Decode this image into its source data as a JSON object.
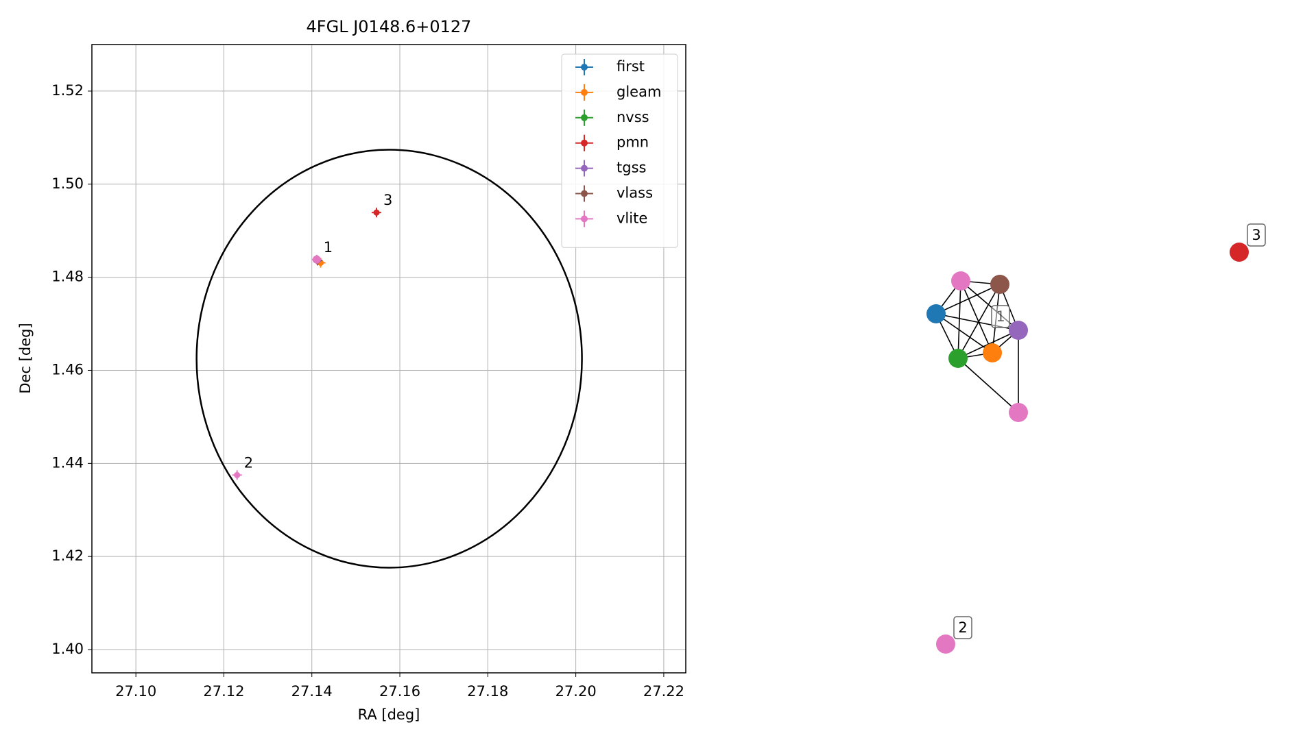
{
  "chart_data": {
    "type": "scatter",
    "title": "4FGL J0148.6+0127",
    "xlabel": "RA [deg]",
    "ylabel": "Dec [deg]",
    "xlim": [
      27.09,
      27.225
    ],
    "ylim": [
      1.395,
      1.53
    ],
    "xticks": [
      {
        "value": 27.1,
        "label": "27.10"
      },
      27.12,
      27.14,
      27.16,
      27.18,
      {
        "value": 27.2,
        "label": "27.20"
      },
      27.22
    ],
    "yticks": [
      {
        "value": 1.4,
        "label": "1.40"
      },
      1.42,
      1.44,
      1.46,
      1.48,
      {
        "value": 1.5,
        "label": "1.50"
      },
      1.52
    ],
    "grid": true,
    "legend": "upper right",
    "circle": {
      "x": 27.1576,
      "y": 1.4625,
      "rx": 0.0438,
      "ry": 0.0449,
      "color": "#000000"
    },
    "series": [
      {
        "name": "first",
        "color": "#1f77b4",
        "x": [
          27.1413
        ],
        "y": [
          1.4836
        ]
      },
      {
        "name": "gleam",
        "color": "#ff7f0e",
        "x": [
          27.142
        ],
        "y": [
          1.4831
        ]
      },
      {
        "name": "nvss",
        "color": "#2ca02c",
        "x": [
          27.1413
        ],
        "y": [
          1.4836
        ]
      },
      {
        "name": "pmn",
        "color": "#d62728",
        "x": [
          27.1547
        ],
        "y": [
          1.4939
        ]
      },
      {
        "name": "tgss",
        "color": "#9467bd",
        "x": [
          27.1413
        ],
        "y": [
          1.4836
        ]
      },
      {
        "name": "vlass",
        "color": "#8c564b",
        "x": [
          27.1413
        ],
        "y": [
          1.4836
        ]
      },
      {
        "name": "vlite",
        "color": "#e377c2",
        "x": [
          27.1411,
          27.123
        ],
        "y": [
          1.4838,
          1.4375
        ]
      }
    ],
    "annotations": [
      {
        "text": "1",
        "x": 27.1411,
        "y": 1.4838
      },
      {
        "text": "2",
        "x": 27.123,
        "y": 1.4375
      },
      {
        "text": "3",
        "x": 27.1547,
        "y": 1.4939
      }
    ]
  },
  "graph": {
    "nodes": [
      {
        "color": "#1f77b4"
      },
      {
        "color": "#e377c2"
      },
      {
        "color": "#8c564b"
      },
      {
        "color": "#9467bd"
      },
      {
        "color": "#ff7f0e"
      },
      {
        "color": "#2ca02c"
      },
      {
        "color": "#e377c2"
      },
      {
        "color": "#d62728"
      },
      {
        "color": "#e377c2"
      }
    ],
    "edges": [
      [
        0,
        1
      ],
      [
        0,
        2
      ],
      [
        0,
        3
      ],
      [
        0,
        4
      ],
      [
        0,
        5
      ],
      [
        1,
        2
      ],
      [
        1,
        3
      ],
      [
        1,
        4
      ],
      [
        1,
        5
      ],
      [
        2,
        3
      ],
      [
        2,
        4
      ],
      [
        2,
        5
      ],
      [
        3,
        4
      ],
      [
        3,
        5
      ],
      [
        3,
        6
      ],
      [
        4,
        5
      ],
      [
        5,
        6
      ]
    ],
    "labels": [
      "1",
      "2",
      "3"
    ]
  }
}
